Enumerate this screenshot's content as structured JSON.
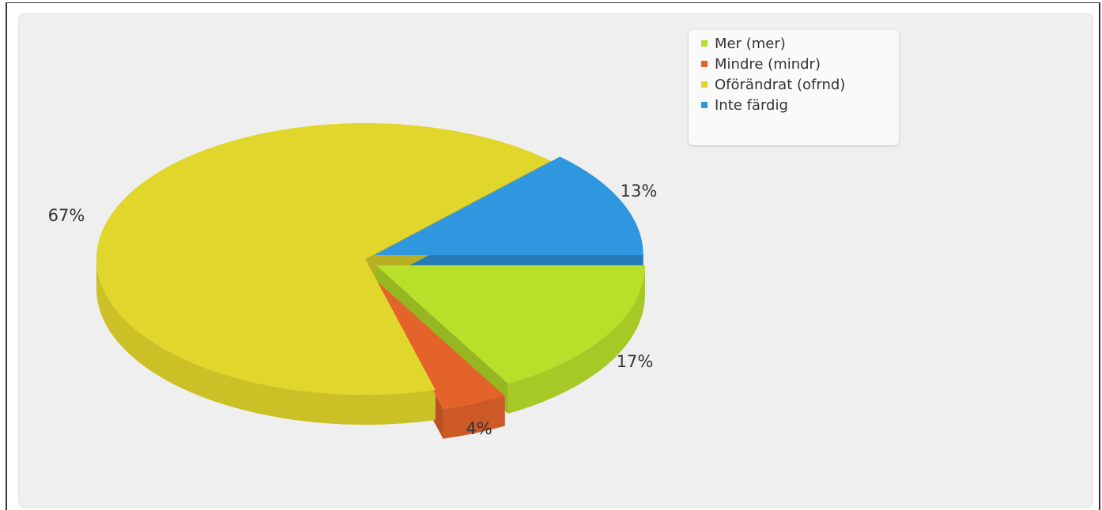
{
  "chart_data": {
    "type": "pie",
    "three_d": true,
    "exploded": true,
    "legend_position": "top-right",
    "slices": [
      {
        "name": "Mer (mer)",
        "value": 17,
        "label": "17%",
        "color": "#b8df2a"
      },
      {
        "name": "Mindre (mindr)",
        "value": 4,
        "label": "4%",
        "color": "#e4632a"
      },
      {
        "name": "Oförändrat (ofrnd)",
        "value": 67,
        "label": "67%",
        "color": "#e1d62b"
      },
      {
        "name": "Inte färdig",
        "value": 13,
        "label": "13%",
        "color": "#2f97e0"
      }
    ]
  },
  "icons": {
    "legend_marker": "square-marker-icon"
  }
}
